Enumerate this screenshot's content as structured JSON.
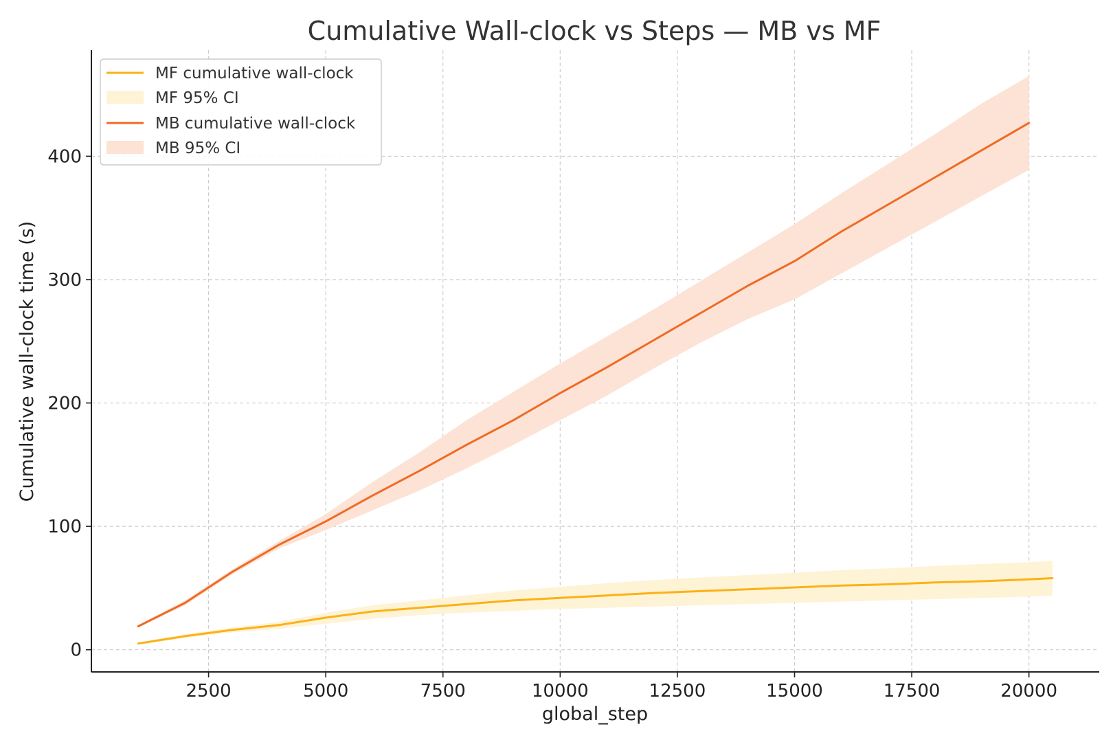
{
  "chart_data": {
    "type": "line",
    "title": "Cumulative Wall-clock vs Steps — MB vs MF",
    "xlabel": "global_step",
    "ylabel": "Cumulative wall-clock time (s)",
    "xlim": [
      0,
      21500
    ],
    "ylim": [
      -18,
      486
    ],
    "xticks": [
      2500,
      5000,
      7500,
      10000,
      12500,
      15000,
      17500,
      20000
    ],
    "yticks": [
      0,
      100,
      200,
      300,
      400
    ],
    "grid": true,
    "legend_position": "top-left",
    "legend": {
      "mf_line": "MF cumulative wall-clock",
      "mf_ci": "MF 95% CI",
      "mb_line": "MB cumulative wall-clock",
      "mb_ci": "MB 95% CI"
    },
    "colors": {
      "mf_line": "#fbb116",
      "mf_ci": "#fff3d6",
      "mb_line": "#ef6b24",
      "mb_ci": "#fce3d6"
    },
    "series": [
      {
        "name": "MF cumulative wall-clock",
        "x": [
          1000,
          2000,
          3000,
          4000,
          5000,
          6000,
          7000,
          8000,
          9000,
          10000,
          11000,
          12000,
          13000,
          14000,
          15000,
          16000,
          17000,
          18000,
          19000,
          20000,
          20500
        ],
        "y": [
          5,
          11,
          16,
          20,
          26,
          31,
          34,
          37,
          40,
          42,
          44,
          46,
          47.5,
          49,
          50.5,
          52,
          53,
          54.5,
          55.5,
          57,
          58
        ],
        "ci_lower": [
          4,
          9.5,
          14,
          17,
          21,
          25,
          28,
          30,
          31.5,
          33,
          34,
          35,
          36,
          37,
          38,
          39,
          40,
          41,
          42,
          43,
          44
        ],
        "ci_upper": [
          6,
          12.5,
          18,
          22.5,
          30,
          36,
          40,
          44,
          48,
          51,
          54,
          56.5,
          58.5,
          60.5,
          62.5,
          64.5,
          66,
          68,
          69.5,
          71,
          72
        ]
      },
      {
        "name": "MB cumulative wall-clock",
        "x": [
          1000,
          2000,
          3000,
          4000,
          5000,
          6000,
          7000,
          8000,
          9000,
          10000,
          11000,
          12000,
          13000,
          14000,
          15000,
          16000,
          17000,
          18000,
          19000,
          20000
        ],
        "y": [
          19,
          38,
          63,
          85,
          104,
          125,
          145,
          166,
          186,
          208,
          229,
          251,
          273,
          295,
          315,
          339,
          361,
          383,
          405,
          427
        ],
        "ci_lower": [
          18,
          36,
          61,
          82,
          97,
          113,
          129,
          147,
          166,
          186,
          206,
          228,
          249,
          268,
          284,
          305,
          326,
          347,
          368,
          389
        ],
        "ci_upper": [
          20,
          40,
          65,
          88,
          110,
          136,
          160,
          186,
          209,
          232,
          254,
          276,
          299,
          322,
          345,
          370,
          394,
          418,
          443,
          465
        ]
      }
    ]
  }
}
